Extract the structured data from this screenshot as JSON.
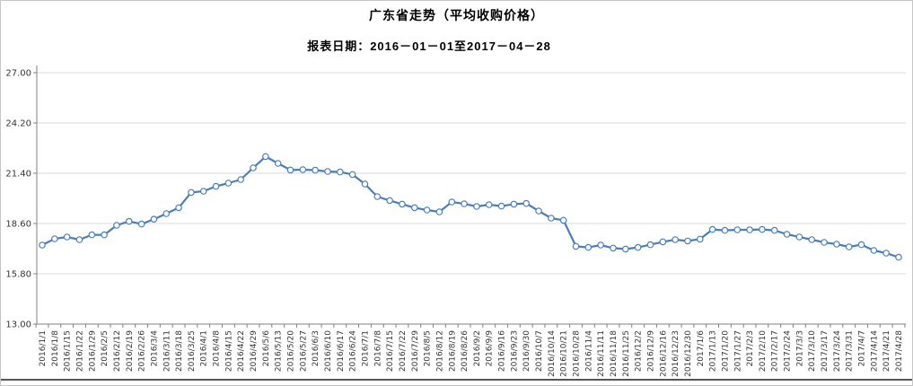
{
  "header": {
    "title": "广东省走势（平均收购价格）",
    "subtitle": "报表日期：2016－01－01至2017－04－28"
  },
  "colors": {
    "line": "#4a7ebb",
    "marker_fill": "#ffffff",
    "grid": "#d9d9d9",
    "axis": "#808080",
    "tick_label": "#333333",
    "bottom_rule": "#1f1f1f",
    "border": "#c6c6c6"
  },
  "chart_data": {
    "type": "line",
    "title": "广东省走势（平均收购价格）",
    "xlabel": "",
    "ylabel": "",
    "ylim": [
      13.0,
      27.0
    ],
    "yticks": [
      13.0,
      15.8,
      18.6,
      21.4,
      24.2,
      27.0
    ],
    "grid": true,
    "legend_position": "none",
    "marker": "hollow-circle",
    "x": [
      "2016/1/1",
      "2016/1/8",
      "2016/1/15",
      "2016/1/22",
      "2016/1/29",
      "2016/2/5",
      "2016/2/12",
      "2016/2/19",
      "2016/2/26",
      "2016/3/4",
      "2016/3/11",
      "2016/3/18",
      "2016/3/25",
      "2016/4/1",
      "2016/4/8",
      "2016/4/15",
      "2016/4/22",
      "2016/4/29",
      "2016/5/6",
      "2016/5/13",
      "2016/5/20",
      "2016/5/27",
      "2016/6/3",
      "2016/6/10",
      "2016/6/17",
      "2016/6/24",
      "2016/7/1",
      "2016/7/8",
      "2016/7/15",
      "2016/7/22",
      "2016/7/29",
      "2016/8/5",
      "2016/8/12",
      "2016/8/19",
      "2016/8/26",
      "2016/9/2",
      "2016/9/9",
      "2016/9/16",
      "2016/9/23",
      "2016/9/30",
      "2016/10/7",
      "2016/10/14",
      "2016/10/21",
      "2016/10/28",
      "2016/11/4",
      "2016/11/11",
      "2016/11/18",
      "2016/11/25",
      "2016/12/2",
      "2016/12/9",
      "2016/12/16",
      "2016/12/23",
      "2016/12/30",
      "2017/1/6",
      "2017/1/13",
      "2017/1/20",
      "2017/1/27",
      "2017/2/3",
      "2017/2/10",
      "2017/2/17",
      "2017/2/24",
      "2017/3/3",
      "2017/3/10",
      "2017/3/17",
      "2017/3/24",
      "2017/3/31",
      "2017/4/7",
      "2017/4/14",
      "2017/4/21",
      "2017/4/28"
    ],
    "series": [
      {
        "name": "平均收购价格",
        "values": [
          17.4,
          17.75,
          17.85,
          17.7,
          17.97,
          17.97,
          18.5,
          18.72,
          18.57,
          18.84,
          19.15,
          19.48,
          20.33,
          20.4,
          20.67,
          20.85,
          21.05,
          21.7,
          22.33,
          21.95,
          21.58,
          21.6,
          21.57,
          21.5,
          21.47,
          21.33,
          20.8,
          20.1,
          19.88,
          19.68,
          19.48,
          19.35,
          19.25,
          19.8,
          19.7,
          19.55,
          19.65,
          19.57,
          19.68,
          19.72,
          19.3,
          18.9,
          18.78,
          17.33,
          17.27,
          17.4,
          17.23,
          17.18,
          17.27,
          17.42,
          17.58,
          17.7,
          17.63,
          17.73,
          18.27,
          18.22,
          18.25,
          18.25,
          18.27,
          18.22,
          18.0,
          17.85,
          17.7,
          17.55,
          17.45,
          17.3,
          17.42,
          17.1,
          16.95,
          16.72
        ]
      }
    ]
  }
}
